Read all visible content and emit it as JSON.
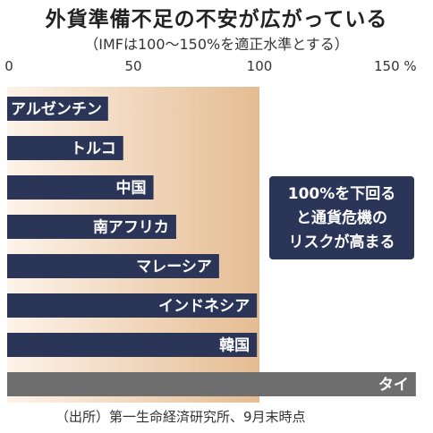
{
  "chart_data": {
    "type": "bar",
    "orientation": "horizontal",
    "title": "外貨準備不足の不安が広がっている",
    "subtitle": "（IMFは100～150%を適正水準とする）",
    "categories": [
      "アルゼンチン",
      "トルコ",
      "中国",
      "南アフリカ",
      "マレーシア",
      "インドネシア",
      "韓国",
      "タイ"
    ],
    "values": [
      40,
      46,
      58,
      67,
      84,
      99,
      99,
      162
    ],
    "xlim": [
      0,
      160
    ],
    "x_ticks": [
      "0",
      "50",
      "100",
      "150 %"
    ],
    "x_tick_values": [
      0,
      50,
      100,
      150
    ],
    "grid": false,
    "bar_colors": [
      "#2a3558",
      "#2a3558",
      "#2a3558",
      "#2a3558",
      "#2a3558",
      "#2a3558",
      "#2a3558",
      "#6e6e6e"
    ],
    "shaded_region": {
      "from": 0,
      "to": 100
    },
    "annotation": [
      "100%を下回る",
      "と通貨危機の",
      "リスクが高まる"
    ],
    "source": "（出所）第一生命経済研究所、9月末時点"
  },
  "colors": {
    "bar_primary": "#2a3558",
    "bar_highlight": "#6e6e6e",
    "shade_light": "#fdf3e9",
    "shade_dark": "#e5bc92",
    "annotation_bg": "#2a3558"
  }
}
